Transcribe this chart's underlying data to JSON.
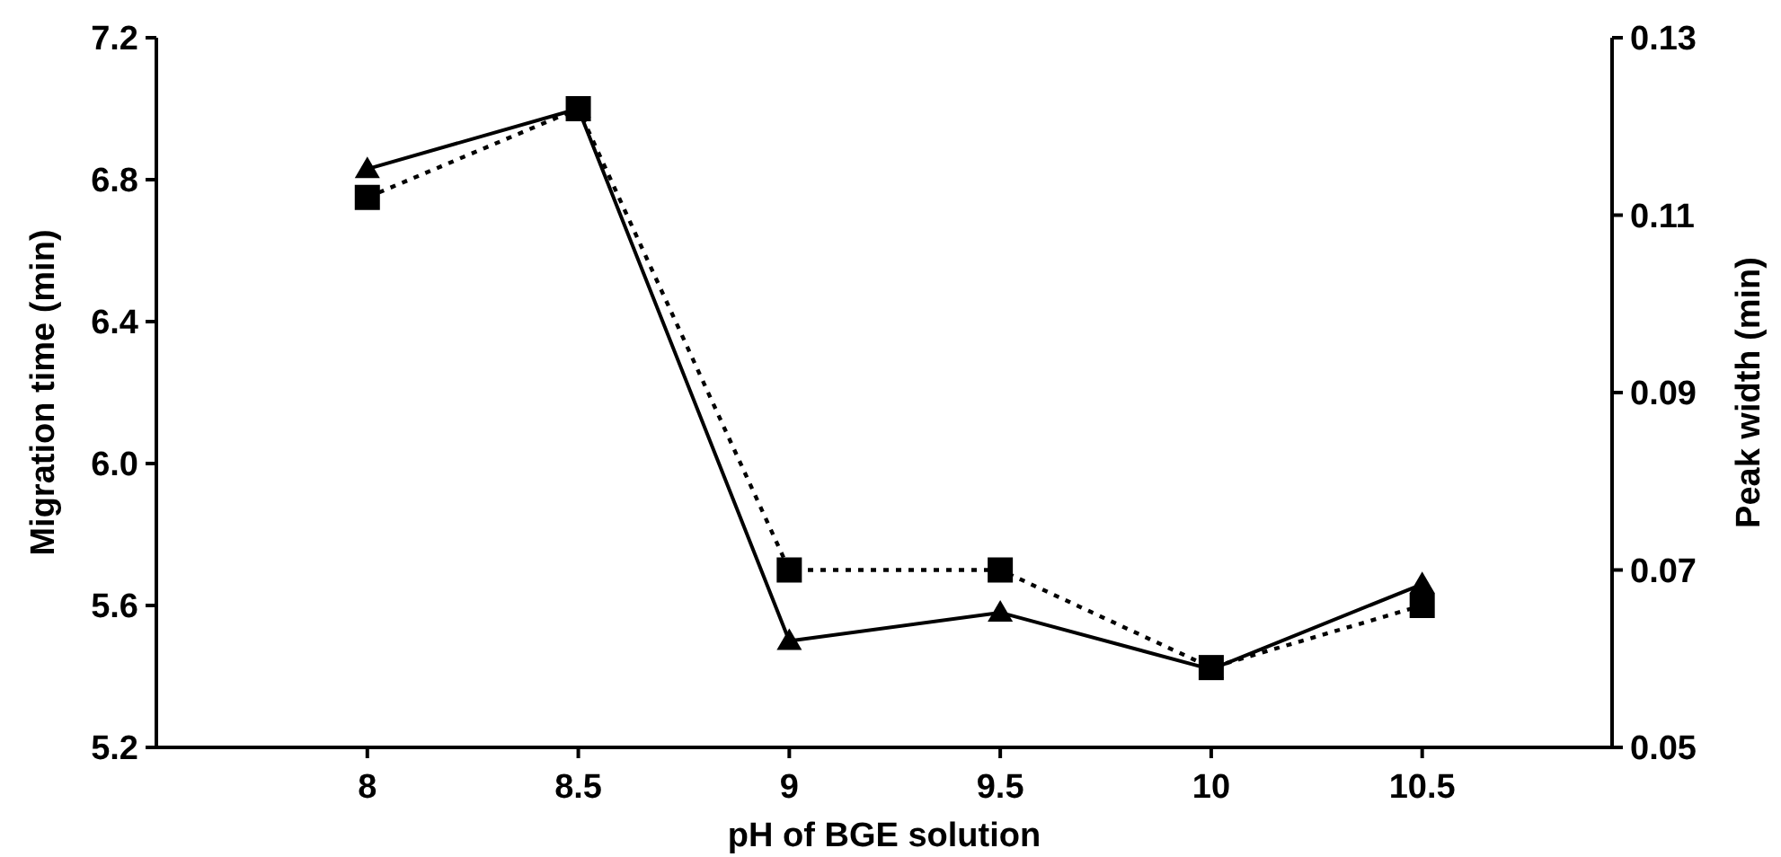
{
  "chart_data": {
    "type": "line",
    "xlabel": "pH of BGE solution",
    "ylabel": "Migration time (min)",
    "y2label": "Peak width (min)",
    "x": [
      8,
      8.5,
      9,
      9.5,
      10,
      10.5
    ],
    "xlim": [
      7.5,
      10.95
    ],
    "xticks": [
      8,
      8.5,
      9,
      9.5,
      10,
      10.5
    ],
    "ylim": [
      5.2,
      7.2
    ],
    "yticks": [
      {
        "value": 5.2,
        "label": "5.2"
      },
      {
        "value": 5.6,
        "label": "5.6"
      },
      {
        "value": 6,
        "label": "6.0"
      },
      {
        "value": 6.4,
        "label": "6.4"
      },
      {
        "value": 6.8,
        "label": "6.8"
      },
      {
        "value": 7.2,
        "label": "7.2"
      }
    ],
    "y2lim": [
      0.05,
      0.13
    ],
    "y2ticks": [
      {
        "value": 0.05,
        "label": "0.05"
      },
      {
        "value": 0.07,
        "label": "0.07"
      },
      {
        "value": 0.09,
        "label": "0.09"
      },
      {
        "value": 0.11,
        "label": "0.11"
      },
      {
        "value": 0.13,
        "label": "0.13"
      }
    ],
    "series": [
      {
        "color": "#000000",
        "marker": "triangle",
        "line_style": "solid",
        "values": [
          6.83,
          7.0,
          5.5,
          5.58,
          5.42,
          5.66
        ]
      },
      {
        "color": "#000000",
        "marker": "square",
        "line_style": "dotted",
        "axis": "y2",
        "values": [
          0.112,
          0.122,
          0.07,
          0.07,
          0.059,
          0.066
        ]
      }
    ]
  }
}
